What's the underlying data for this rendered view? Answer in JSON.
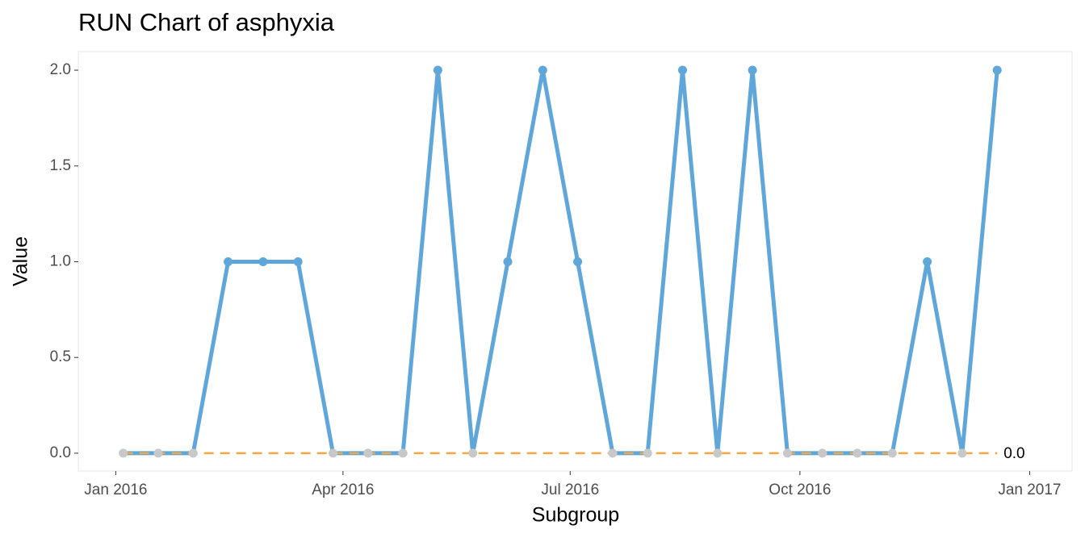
{
  "chart_data": {
    "type": "line",
    "title": "RUN Chart of asphyxia",
    "x_label": "Subgroup",
    "y_label": "Value",
    "x": [
      "2016-01-04",
      "2016-01-18",
      "2016-02-01",
      "2016-02-15",
      "2016-02-29",
      "2016-03-14",
      "2016-03-28",
      "2016-04-11",
      "2016-04-25",
      "2016-05-09",
      "2016-05-23",
      "2016-06-06",
      "2016-06-20",
      "2016-07-04",
      "2016-07-18",
      "2016-08-01",
      "2016-08-15",
      "2016-08-29",
      "2016-09-12",
      "2016-09-26",
      "2016-10-10",
      "2016-10-24",
      "2016-11-07",
      "2016-11-21",
      "2016-12-05",
      "2016-12-19"
    ],
    "series": [
      {
        "name": "asphyxia",
        "color": "#5fa6da",
        "values": [
          0,
          0,
          0,
          1,
          1,
          1,
          0,
          0,
          0,
          2,
          0,
          1,
          2,
          1,
          0,
          0,
          2,
          0,
          2,
          0,
          0,
          0,
          0,
          1,
          0,
          2
        ]
      }
    ],
    "median": {
      "value": 0,
      "label": "0.0",
      "color": "#f5a742"
    },
    "median_point_color": "#c8c8c8",
    "xlim": [
      "2015-12-17",
      "2017-01-18"
    ],
    "xticks": [
      {
        "value": "2016-01-01",
        "label": "Jan 2016"
      },
      {
        "value": "2016-04-01",
        "label": "Apr 2016"
      },
      {
        "value": "2016-07-01",
        "label": "Jul 2016"
      },
      {
        "value": "2016-10-01",
        "label": "Oct 2016"
      },
      {
        "value": "2017-01-01",
        "label": "Jan 2017"
      }
    ],
    "ylim": [
      -0.093,
      2.097
    ],
    "yticks": [
      {
        "value": 0,
        "label": "0.0"
      },
      {
        "value": 0.5,
        "label": "0.5"
      },
      {
        "value": 1,
        "label": "1.0"
      },
      {
        "value": 1.5,
        "label": "1.5"
      },
      {
        "value": 2,
        "label": "2.0"
      }
    ],
    "grid": false
  }
}
